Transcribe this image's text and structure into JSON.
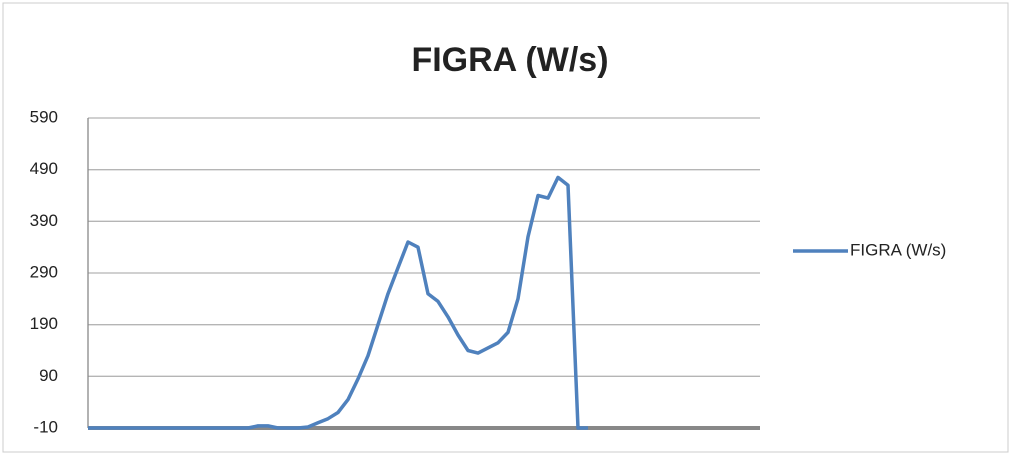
{
  "chart_data": {
    "type": "line",
    "title": "FIGRA (W/s)",
    "series": [
      {
        "name": "FIGRA (W/s)",
        "color": "#4f81bd",
        "values": [
          -10,
          -10,
          -10,
          -10,
          -10,
          -10,
          -10,
          -10,
          -10,
          -10,
          -10,
          -10,
          -10,
          -10,
          -10,
          -10,
          -10,
          -6,
          -6,
          -10,
          -10,
          -10,
          -8,
          0,
          8,
          20,
          45,
          85,
          130,
          190,
          250,
          300,
          350,
          340,
          250,
          235,
          205,
          170,
          140,
          135,
          145,
          155,
          175,
          240,
          360,
          440,
          435,
          475,
          460,
          -10,
          -10
        ]
      }
    ],
    "ylim": [
      -10,
      590
    ],
    "yticks": [
      -10,
      90,
      190,
      290,
      390,
      490,
      590
    ],
    "grid": true,
    "legend": "right"
  }
}
